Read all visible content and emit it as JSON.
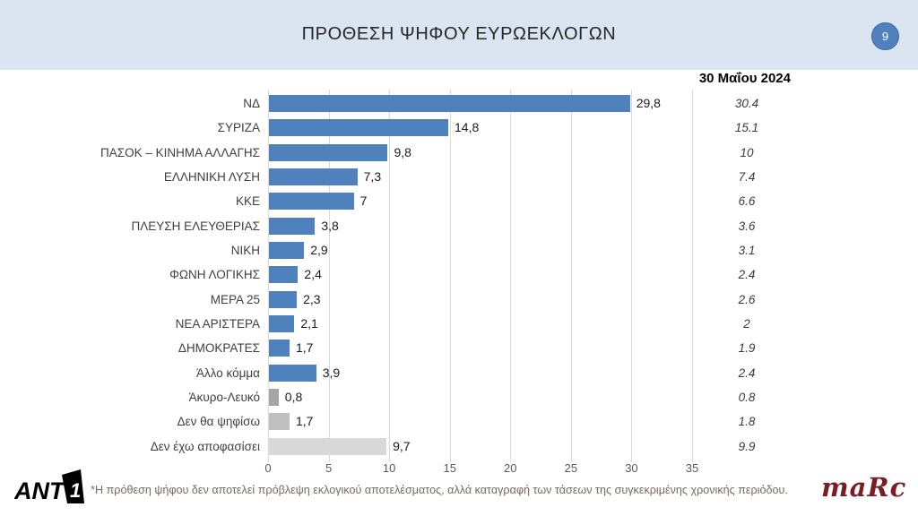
{
  "header": {
    "page_number": "9"
  },
  "chart_data": {
    "type": "bar",
    "orientation": "horizontal",
    "title": "ΠΡΟΘΕΣΗ ΨΗΦΟΥ ΕΥΡΩΕΚΛΟΓΩΝ",
    "categories": [
      "ΝΔ",
      "ΣΥΡΙΖΑ",
      "ΠΑΣΟΚ – ΚΙΝΗΜΑ ΑΛΛΑΓΗΣ",
      "ΕΛΛΗΝΙΚΗ ΛΥΣΗ",
      "ΚΚΕ",
      "ΠΛΕΥΣΗ ΕΛΕΥΘΕΡΙΑΣ",
      "ΝΙΚΗ",
      "ΦΩΝΗ ΛΟΓΙΚΗΣ",
      "ΜΕΡΑ 25",
      "ΝΕΑ ΑΡΙΣΤΕΡΑ",
      "ΔΗΜΟΚΡΑΤΕΣ",
      "Άλλο κόμμα",
      "Άκυρο-Λευκό",
      "Δεν θα ψηφίσω",
      "Δεν έχω αποφασίσει"
    ],
    "series": [
      {
        "name": "",
        "values": [
          29.8,
          14.8,
          9.8,
          7.3,
          7,
          3.8,
          2.9,
          2.4,
          2.3,
          2.1,
          1.7,
          3.9,
          0.8,
          1.7,
          9.7
        ],
        "labels": [
          "29,8",
          "14,8",
          "9,8",
          "7,3",
          "7",
          "3,8",
          "2,9",
          "2,4",
          "2,3",
          "2,1",
          "1,7",
          "3,9",
          "0,8",
          "1,7",
          "9,7"
        ]
      },
      {
        "name": "30 Μαΐου 2024",
        "values": [
          30.4,
          15.1,
          10,
          7.4,
          6.6,
          3.6,
          3.1,
          2.4,
          2.6,
          2,
          1.9,
          2.4,
          0.8,
          1.8,
          9.9
        ],
        "labels": [
          "30.4",
          "15.1",
          "10",
          "7.4",
          "6.6",
          "3.6",
          "3.1",
          "2.4",
          "2.6",
          "2",
          "1.9",
          "2.4",
          "0.8",
          "1.8",
          "9.9"
        ]
      }
    ],
    "xlabel": "",
    "ylabel": "",
    "xlim": [
      0,
      35
    ],
    "xticks": [
      0,
      5,
      10,
      15,
      20,
      25,
      30,
      35
    ],
    "grid": true,
    "colors": {
      "bar_default": "#4F81BD",
      "bar_invalid_blank": "#A6A6A6",
      "bar_wont_vote": "#BFBFBF",
      "bar_undecided": "#D9D9D9"
    },
    "bar_color_overrides": {
      "12": "#A6A6A6",
      "13": "#BFBFBF",
      "14": "#D9D9D9"
    }
  },
  "footer": {
    "note": "*Η πρόθεση ψήφου δεν αποτελεί πρόβλεψη εκλογικού αποτελέσματος, αλλά καταγραφή των τάσεων της συγκεκριμένης χρονικής περιόδου.",
    "ant1_text_main": "ANT",
    "ant1_text_one": "1",
    "marc_text": "maRc"
  }
}
